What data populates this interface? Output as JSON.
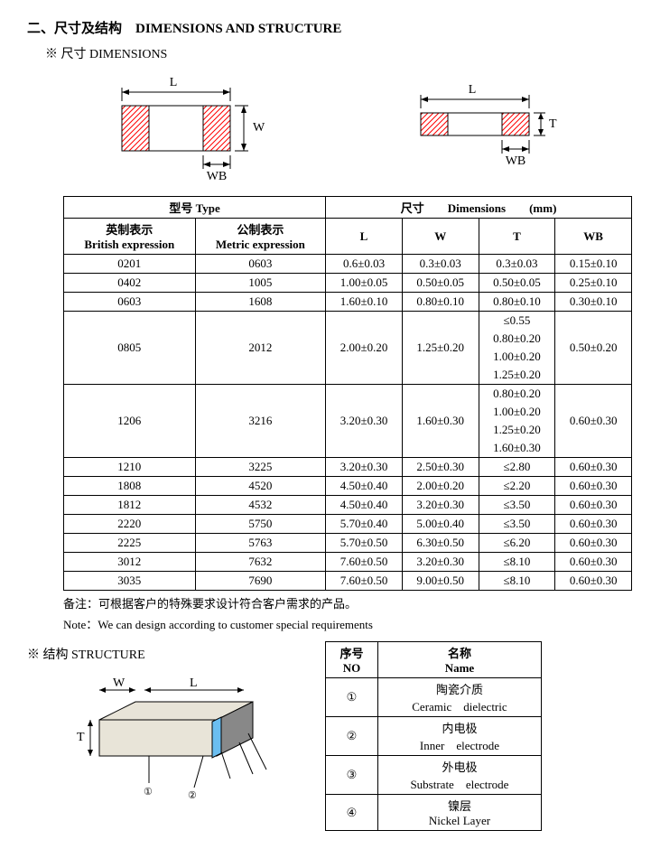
{
  "title": "二、尺寸及结构　DIMENSIONS AND STRUCTURE",
  "sub_dimensions": "※ 尺寸 DIMENSIONS",
  "diagram": {
    "L": "L",
    "W": "W",
    "T": "T",
    "WB": "WB",
    "hatch_color": "#ff0000",
    "line_color": "#000000"
  },
  "dim_table": {
    "head_type_cn": "型号 Type",
    "head_dim_cn": "尺寸",
    "head_dim_en": "Dimensions",
    "head_dim_unit": "(mm)",
    "head_brit_cn": "英制表示",
    "head_brit_en": "British expression",
    "head_met_cn": "公制表示",
    "head_met_en": "Metric expression",
    "head_L": "L",
    "head_W": "W",
    "head_T": "T",
    "head_WB": "WB",
    "rows": [
      [
        "0201",
        "0603",
        "0.6±0.03",
        "0.3±0.03",
        "0.3±0.03",
        "0.15±0.10"
      ],
      [
        "0402",
        "1005",
        "1.00±0.05",
        "0.50±0.05",
        "0.50±0.05",
        "0.25±0.10"
      ],
      [
        "0603",
        "1608",
        "1.60±0.10",
        "0.80±0.10",
        "0.80±0.10",
        "0.30±0.10"
      ]
    ],
    "row0805": {
      "b": "0805",
      "m": "2012",
      "L": "2.00±0.20",
      "W": "1.25±0.20",
      "T": [
        "≤0.55",
        "0.80±0.20",
        "1.00±0.20",
        "1.25±0.20"
      ],
      "WB": "0.50±0.20"
    },
    "row1206": {
      "b": "1206",
      "m": "3216",
      "L": "3.20±0.30",
      "W": "1.60±0.30",
      "T": [
        "0.80±0.20",
        "1.00±0.20",
        "1.25±0.20",
        "1.60±0.30"
      ],
      "WB": "0.60±0.30"
    },
    "rows2": [
      [
        "1210",
        "3225",
        "3.20±0.30",
        "2.50±0.30",
        "≤2.80",
        "0.60±0.30"
      ],
      [
        "1808",
        "4520",
        "4.50±0.40",
        "2.00±0.20",
        "≤2.20",
        "0.60±0.30"
      ],
      [
        "1812",
        "4532",
        "4.50±0.40",
        "3.20±0.30",
        "≤3.50",
        "0.60±0.30"
      ],
      [
        "2220",
        "5750",
        "5.70±0.40",
        "5.00±0.40",
        "≤3.50",
        "0.60±0.30"
      ],
      [
        "2225",
        "5763",
        "5.70±0.50",
        "6.30±0.50",
        "≤6.20",
        "0.60±0.30"
      ],
      [
        "3012",
        "7632",
        "7.60±0.50",
        "3.20±0.30",
        "≤8.10",
        "0.60±0.30"
      ],
      [
        "3035",
        "7690",
        "7.60±0.50",
        "9.00±0.50",
        "≤8.10",
        "0.60±0.30"
      ]
    ]
  },
  "note_cn": "备注：可根据客户的特殊要求设计符合客户需求的产品。",
  "note_en": "Note：We can design according to customer special requirements",
  "sub_structure": "※ 结构 STRUCTURE",
  "struct_diagram": {
    "W": "W",
    "L": "L",
    "T": "T",
    "colors": {
      "body": "#e8e4d8",
      "inner": "#6bbef0",
      "electrode": "#888888"
    }
  },
  "struct_table": {
    "head_no_cn": "序号",
    "head_no_en": "NO",
    "head_name_cn": "名称",
    "head_name_en": "Name",
    "rows": [
      {
        "n": "①",
        "cn": "陶瓷介质",
        "en": "Ceramic　dielectric"
      },
      {
        "n": "②",
        "cn": "内电极",
        "en": "Inner　electrode"
      },
      {
        "n": "③",
        "cn": "外电极",
        "en": "Substrate　electrode"
      },
      {
        "n": "④",
        "cn": "镍层",
        "en": "Nickel Layer"
      }
    ]
  }
}
